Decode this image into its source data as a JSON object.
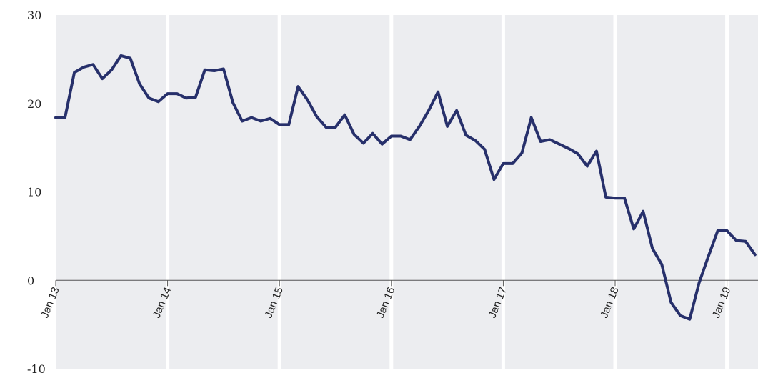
{
  "chart_data": {
    "type": "line",
    "title": "",
    "xlabel": "",
    "ylabel": "",
    "ylim": [
      -10,
      30
    ],
    "yticks": [
      {
        "value": 30,
        "label": "30"
      },
      {
        "value": 20,
        "label": "20"
      },
      {
        "value": 10,
        "label": "10"
      },
      {
        "value": 0,
        "label": "0"
      },
      {
        "value": -10,
        "label": "-10"
      }
    ],
    "xlim": [
      "2013-01",
      "2019-04"
    ],
    "xticks": [
      "Jan 13",
      "Jan 14",
      "Jan 15",
      "Jan 16",
      "Jan 17",
      "Jan 18",
      "Jan 19"
    ],
    "grid": false,
    "colors": {
      "line": "#27306b",
      "panel": "#ecedf0"
    },
    "series": [
      {
        "x": [
          "2013-01",
          "2013-02",
          "2013-03",
          "2013-04",
          "2013-05",
          "2013-06",
          "2013-07",
          "2013-08",
          "2013-09",
          "2013-10",
          "2013-11",
          "2013-12",
          "2014-01",
          "2014-02",
          "2014-03",
          "2014-04",
          "2014-05",
          "2014-06",
          "2014-07",
          "2014-08",
          "2014-09",
          "2014-10",
          "2014-11",
          "2014-12",
          "2015-01",
          "2015-02",
          "2015-03",
          "2015-04",
          "2015-05",
          "2015-06",
          "2015-07",
          "2015-08",
          "2015-09",
          "2015-10",
          "2015-11",
          "2015-12",
          "2016-01",
          "2016-02",
          "2016-03",
          "2016-04",
          "2016-05",
          "2016-06",
          "2016-07",
          "2016-08",
          "2016-09",
          "2016-10",
          "2016-11",
          "2016-12",
          "2017-01",
          "2017-02",
          "2017-03",
          "2017-04",
          "2017-05",
          "2017-06",
          "2017-07",
          "2017-08",
          "2017-09",
          "2017-10",
          "2017-11",
          "2017-12",
          "2018-01",
          "2018-02",
          "2018-03",
          "2018-04",
          "2018-05",
          "2018-06",
          "2018-07",
          "2018-08",
          "2018-09",
          "2018-10",
          "2018-11",
          "2018-12",
          "2019-01",
          "2019-02",
          "2019-03",
          "2019-04"
        ],
        "values": [
          18.4,
          18.4,
          23.5,
          24.1,
          24.4,
          22.8,
          23.8,
          25.4,
          25.1,
          22.2,
          20.6,
          20.2,
          21.1,
          21.1,
          20.6,
          20.7,
          23.8,
          23.7,
          23.9,
          20.1,
          18.0,
          18.4,
          18.0,
          18.3,
          17.6,
          17.6,
          21.9,
          20.4,
          18.5,
          17.3,
          17.3,
          18.7,
          16.5,
          15.5,
          16.6,
          15.4,
          16.3,
          16.3,
          15.9,
          17.4,
          19.2,
          21.3,
          17.4,
          19.2,
          16.4,
          15.8,
          14.8,
          11.4,
          13.2,
          13.2,
          14.4,
          18.4,
          15.7,
          15.9,
          15.4,
          14.9,
          14.3,
          12.9,
          14.6,
          9.4,
          9.3,
          9.3,
          5.8,
          7.8,
          3.6,
          1.8,
          -2.5,
          -4.0,
          -4.4,
          -0.3,
          2.7,
          5.6,
          5.6,
          4.5,
          4.4,
          2.9
        ]
      }
    ]
  }
}
